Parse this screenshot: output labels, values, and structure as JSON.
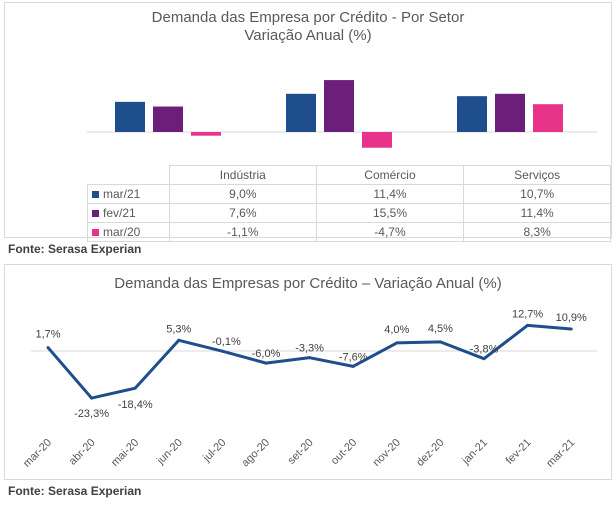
{
  "colors": {
    "mar21": "#1f4e8c",
    "fev21": "#6b1f7a",
    "mar20": "#e8338a",
    "line": "#1f4e8c"
  },
  "top": {
    "title_line1": "Demanda das Empresa por Crédito - Por Setor",
    "title_line2": "Variação Anual (%)",
    "source": "Fonte: Serasa Experian"
  },
  "bottom": {
    "title": "Demanda das Empresas por Crédito – Variação Anual (%)",
    "source": "Fonte: Serasa Experian"
  },
  "chart_data": [
    {
      "type": "bar",
      "title": "Demanda das Empresa por Crédito - Por Setor",
      "subtitle": "Variação Anual (%)",
      "categories": [
        "Indústria",
        "Comércio",
        "Serviços"
      ],
      "series": [
        {
          "name": "mar/21",
          "values": [
            9.0,
            11.4,
            10.7
          ],
          "labels": [
            "9,0%",
            "11,4%",
            "10,7%"
          ]
        },
        {
          "name": "fev/21",
          "values": [
            7.6,
            15.5,
            11.4
          ],
          "labels": [
            "7,6%",
            "15,5%",
            "11,4%"
          ]
        },
        {
          "name": "mar/20",
          "values": [
            -1.1,
            -4.7,
            8.3
          ],
          "labels": [
            "-1,1%",
            "-4,7%",
            "8,3%"
          ]
        }
      ],
      "legend": "data-table"
    },
    {
      "type": "line",
      "title": "Demanda das Empresas por Crédito – Variação Anual (%)",
      "categories": [
        "mar-20",
        "abr-20",
        "mai-20",
        "jun-20",
        "jul-20",
        "ago-20",
        "set-20",
        "out-20",
        "nov-20",
        "dez-20",
        "jan-21",
        "fev-21",
        "mar-21"
      ],
      "series": [
        {
          "values": [
            1.7,
            -23.3,
            -18.4,
            5.3,
            -0.1,
            -6.0,
            -3.3,
            -7.6,
            4.0,
            4.5,
            -3.8,
            12.7,
            10.9
          ],
          "labels": [
            "1,7%",
            "-23,3%",
            "-18,4%",
            "5,3%",
            "-0,1%",
            "-6,0%",
            "-3,3%",
            "-7,6%",
            "4,0%",
            "4,5%",
            "-3,8%",
            "12,7%",
            "10,9%"
          ]
        }
      ]
    }
  ]
}
